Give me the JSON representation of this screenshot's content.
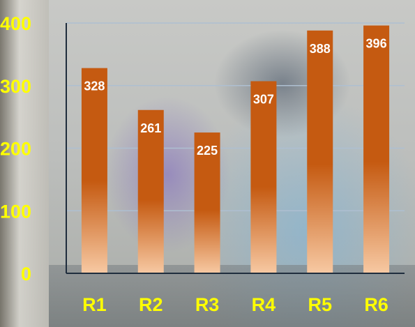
{
  "chart_data": {
    "type": "bar",
    "categories": [
      "R1",
      "R2",
      "R3",
      "R4",
      "R5",
      "R6"
    ],
    "values": [
      328,
      261,
      225,
      307,
      388,
      396
    ],
    "data_labels": [
      "328",
      "261",
      "225",
      "307",
      "388",
      "396"
    ],
    "ylim": [
      0,
      400
    ],
    "yticks": [
      0,
      100,
      200,
      300,
      400
    ],
    "ytick_labels": [
      "0",
      "100",
      "200",
      "300",
      "400"
    ],
    "title": "",
    "xlabel": "",
    "ylabel": "",
    "grid": true,
    "legend": "none",
    "colors": {
      "bar_top": "#c55a11",
      "bar_bottom": "#f7c9a3",
      "tick_label": "#ffff00",
      "data_label": "#ffffff",
      "gridline": "#aebfd1",
      "axis": "#1f2d3d"
    }
  }
}
